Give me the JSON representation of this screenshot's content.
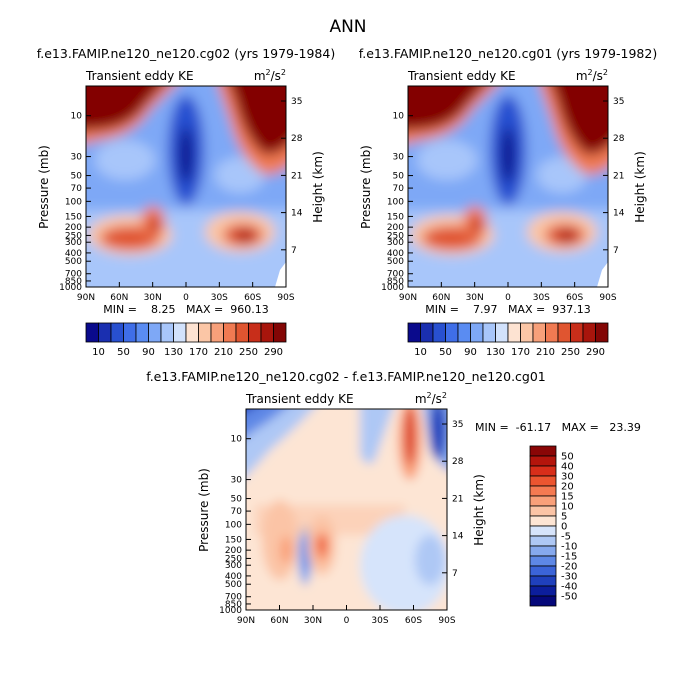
{
  "page": {
    "title": "ANN"
  },
  "chart_data": [
    {
      "type": "heatmap",
      "title": "f.e13.FAMIP.ne120_ne120.cg02 (yrs 1979-1984)",
      "left_label": "Transient eddy KE",
      "units": "m²/s²",
      "units_base": "m",
      "units_exp1": "2",
      "units_mid": "/s",
      "units_exp2": "2",
      "ylabel": "Pressure (mb)",
      "ylabel_right": "Height (km)",
      "x_ticks": [
        "90N",
        "60N",
        "30N",
        "0",
        "30S",
        "60S",
        "90S"
      ],
      "y_ticks": [
        "10",
        "30",
        "50",
        "70",
        "100",
        "150",
        "200",
        "250",
        "300",
        "400",
        "500",
        "700",
        "850",
        "1000"
      ],
      "height_ticks": [
        "35",
        "28",
        "21",
        "14",
        "7"
      ],
      "min_text": "MIN =    8.25   MAX =  960.13",
      "colorbar_labels": [
        "10",
        "50",
        "90",
        "130",
        "170",
        "210",
        "250",
        "290"
      ]
    },
    {
      "type": "heatmap",
      "title": "f.e13.FAMIP.ne120_ne120.cg01 (yrs 1979-1982)",
      "left_label": "Transient eddy KE",
      "units": "m²/s²",
      "units_base": "m",
      "units_exp1": "2",
      "units_mid": "/s",
      "units_exp2": "2",
      "ylabel": "Pressure (mb)",
      "ylabel_right": "Height (km)",
      "x_ticks": [
        "90N",
        "60N",
        "30N",
        "0",
        "30S",
        "60S",
        "90S"
      ],
      "y_ticks": [
        "10",
        "30",
        "50",
        "70",
        "100",
        "150",
        "200",
        "250",
        "300",
        "400",
        "500",
        "700",
        "850",
        "1000"
      ],
      "height_ticks": [
        "35",
        "28",
        "21",
        "14",
        "7"
      ],
      "min_text": "MIN =    7.97   MAX =  937.13",
      "colorbar_labels": [
        "10",
        "50",
        "90",
        "130",
        "170",
        "210",
        "250",
        "290"
      ]
    },
    {
      "type": "heatmap",
      "title": "f.e13.FAMIP.ne120_ne120.cg02 - f.e13.FAMIP.ne120_ne120.cg01",
      "left_label": "Transient eddy KE",
      "units": "m²/s²",
      "units_base": "m",
      "units_exp1": "2",
      "units_mid": "/s",
      "units_exp2": "2",
      "ylabel": "Pressure (mb)",
      "ylabel_right": "Height (km)",
      "x_ticks": [
        "90N",
        "60N",
        "30N",
        "0",
        "30S",
        "60S",
        "90S"
      ],
      "y_ticks": [
        "10",
        "30",
        "50",
        "70",
        "100",
        "150",
        "200",
        "250",
        "300",
        "400",
        "500",
        "700",
        "850",
        "1000"
      ],
      "height_ticks": [
        "35",
        "28",
        "21",
        "14",
        "7"
      ],
      "min_text": "MIN =  -61.17   MAX =   23.39",
      "colorbar_labels": [
        "50",
        "40",
        "30",
        "20",
        "15",
        "10",
        "5",
        "0",
        "-5",
        "-10",
        "-15",
        "-20",
        "-30",
        "-40",
        "-50"
      ]
    }
  ],
  "colors": {
    "abs_scale": [
      "#0a0a8c",
      "#1a2fb0",
      "#2850d0",
      "#3f6ee8",
      "#5a8cf2",
      "#7ea8f6",
      "#a8c6fa",
      "#d2e2fc",
      "#fde3d2",
      "#fbc6a6",
      "#f7a07a",
      "#f07a52",
      "#e05530",
      "#c82e1a",
      "#a8150c",
      "#830605"
    ],
    "diff_scale": [
      "#8a0606",
      "#b4150c",
      "#d82e1a",
      "#ec5530",
      "#f57a52",
      "#f9a07a",
      "#fbc4a6",
      "#fde5d4",
      "#d6e4fb",
      "#aec8f5",
      "#86a9ee",
      "#5e88e6",
      "#3b64d8",
      "#1f40bc",
      "#0c1e9c",
      "#05087a"
    ]
  }
}
